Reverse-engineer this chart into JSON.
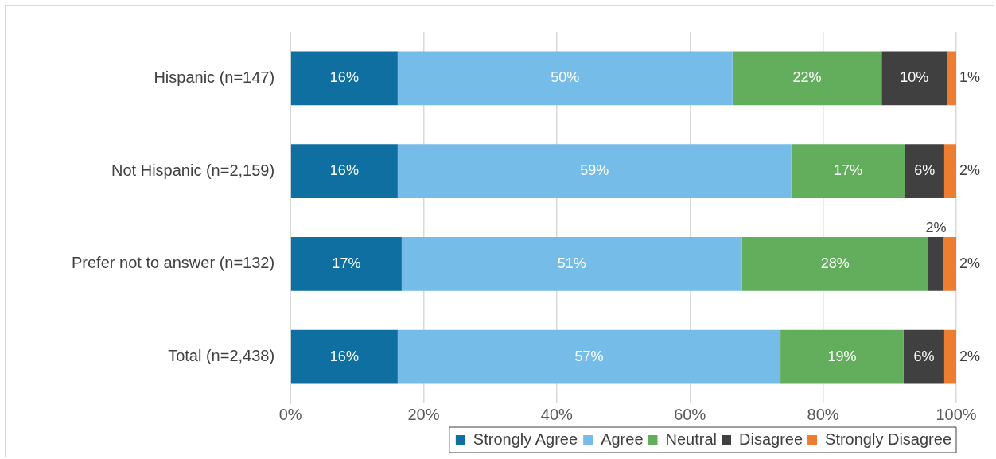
{
  "chart_data": {
    "type": "bar",
    "orientation": "horizontal",
    "stacked": true,
    "categories": [
      "Hispanic (n=147)",
      "Not Hispanic (n=2,159)",
      "Prefer not to answer (n=132)",
      "Total (n=2,438)"
    ],
    "series": [
      {
        "name": "Strongly Agree",
        "color": "#0e6fa0",
        "values": [
          16.1,
          16.1,
          16.7,
          16.1
        ],
        "value_labels": [
          "16%",
          "16%",
          "17%",
          "16%"
        ]
      },
      {
        "name": "Agree",
        "color": "#75bde8",
        "values": [
          50.3,
          59.1,
          51.1,
          57.5
        ],
        "value_labels": [
          "50%",
          "59%",
          "51%",
          "57%"
        ]
      },
      {
        "name": "Neutral",
        "color": "#62ae5c",
        "values": [
          22.4,
          17.1,
          28.0,
          18.5
        ],
        "value_labels": [
          "22%",
          "17%",
          "28%",
          "19%"
        ]
      },
      {
        "name": "Disagree",
        "color": "#404040",
        "values": [
          9.8,
          5.9,
          2.3,
          6.1
        ],
        "value_labels": [
          "10%",
          "6%",
          "2%",
          "6%"
        ]
      },
      {
        "name": "Strongly Disagree",
        "color": "#ed7d31",
        "values": [
          1.4,
          1.8,
          1.9,
          1.8
        ],
        "value_labels": [
          "1%",
          "2%",
          "2%",
          "2%"
        ]
      }
    ],
    "xlim": [
      0,
      100
    ],
    "xticks": [
      {
        "value": 0,
        "label": "0%"
      },
      {
        "value": 20,
        "label": "20%"
      },
      {
        "value": 40,
        "label": "40%"
      },
      {
        "value": 60,
        "label": "60%"
      },
      {
        "value": 80,
        "label": "80%"
      },
      {
        "value": 100,
        "label": "100%"
      }
    ],
    "grid": "x",
    "legend": "bottom right"
  }
}
